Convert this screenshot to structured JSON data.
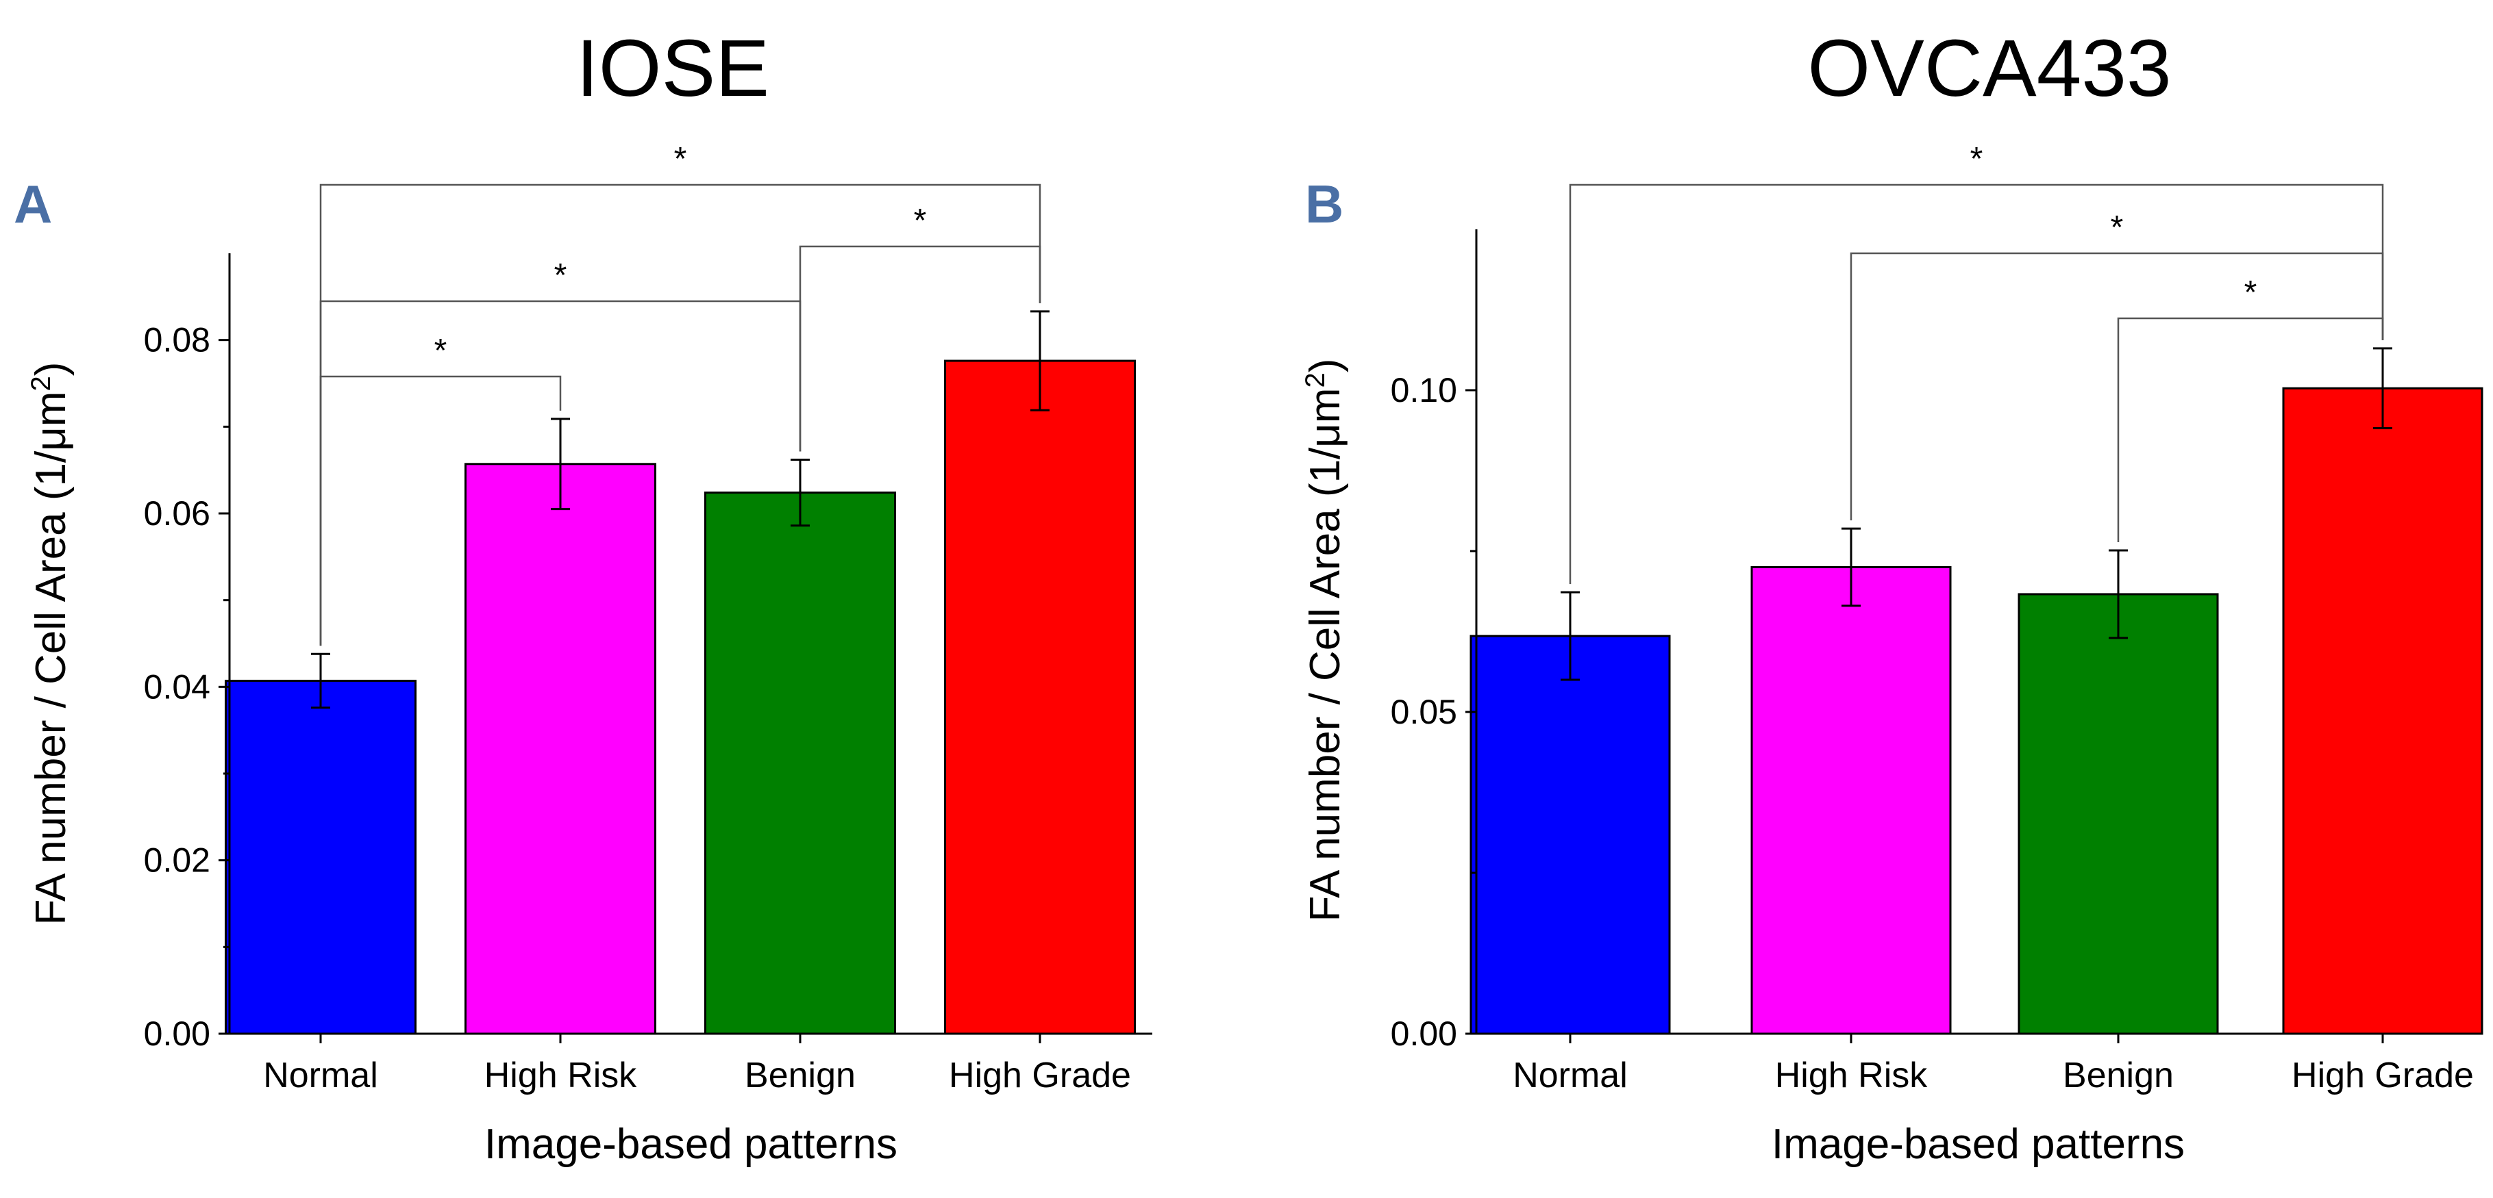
{
  "figure": {
    "accent_color": "#4a6fa5"
  },
  "chart_data": [
    {
      "type": "bar",
      "panel": "A",
      "title": "IOSE",
      "xlabel": "Image-based patterns",
      "ylabel_parts": [
        "FA number / Cell Area (1/",
        "μm",
        "2",
        ")"
      ],
      "categories": [
        "Normal",
        "High Risk",
        "Benign",
        "High Grade"
      ],
      "values": [
        0.0407,
        0.0657,
        0.0624,
        0.0776
      ],
      "errors": [
        0.0031,
        0.0052,
        0.0038,
        0.0057
      ],
      "colors": [
        "#0000ff",
        "#ff00ff",
        "#008000",
        "#ff0000"
      ],
      "ylim": [
        0,
        0.09
      ],
      "yticks": [
        0.0,
        0.02,
        0.04,
        0.06,
        0.08
      ],
      "ytick_labels": [
        "0.00",
        "0.02",
        "0.04",
        "0.06",
        "0.08"
      ],
      "significance": [
        {
          "from": 0,
          "to": 1,
          "label": "*"
        },
        {
          "from": 0,
          "to": 2,
          "label": "*"
        },
        {
          "from": 2,
          "to": 3,
          "label": "*"
        },
        {
          "from": 0,
          "to": 3,
          "label": "*"
        }
      ]
    },
    {
      "type": "bar",
      "panel": "B",
      "title": "OVCA433",
      "xlabel": "Image-based patterns",
      "ylabel_parts": [
        "FA number / Cell Area (1/",
        "μm",
        "2",
        ")"
      ],
      "categories": [
        "Normal",
        "High Risk",
        "Benign",
        "High Grade"
      ],
      "values": [
        0.0618,
        0.0725,
        0.0683,
        0.1003
      ],
      "errors": [
        0.0068,
        0.006,
        0.0068,
        0.0062
      ],
      "colors": [
        "#0000ff",
        "#ff00ff",
        "#008000",
        "#ff0000"
      ],
      "ylim": [
        0,
        0.125
      ],
      "yticks": [
        0.0,
        0.05,
        0.1
      ],
      "ytick_labels": [
        "0.00",
        "0.05",
        "0.10"
      ],
      "significance": [
        {
          "from": 2,
          "to": 3,
          "label": "*"
        },
        {
          "from": 1,
          "to": 3,
          "label": "*"
        },
        {
          "from": 0,
          "to": 3,
          "label": "*"
        }
      ]
    }
  ]
}
